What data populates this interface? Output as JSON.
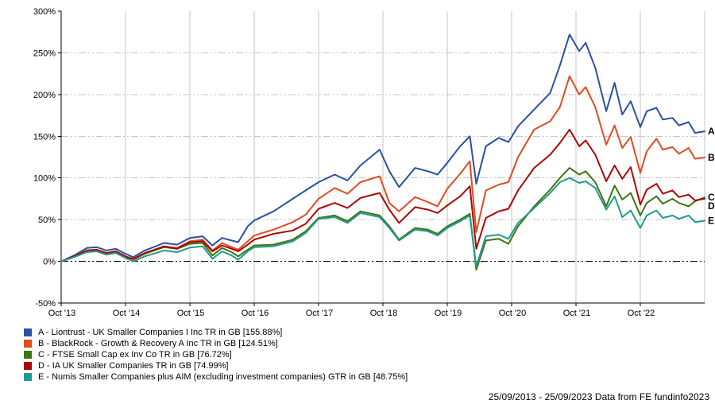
{
  "page": {
    "background": "#ffffff"
  },
  "footer": {
    "text": "25/09/2013 - 25/09/2023 Data from FE fundinfo2023"
  },
  "chart_data": {
    "type": "line",
    "title": "",
    "xlabel": "",
    "ylabel": "",
    "x_description": "years since Oct 2013 (period 25/09/2013 - 25/09/2023)",
    "xlim": [
      0,
      10
    ],
    "ylim": [
      -50,
      300
    ],
    "grid": true,
    "legend_position": "bottom-left",
    "gridline_color": "#c6c6c6",
    "zero_line_color": "#000000",
    "axis_color": "#000000",
    "x_ticks": [
      {
        "pos": 0,
        "label": "Oct '13"
      },
      {
        "pos": 1,
        "label": "Oct '14"
      },
      {
        "pos": 2,
        "label": "Oct '15"
      },
      {
        "pos": 3,
        "label": "Oct '16"
      },
      {
        "pos": 4,
        "label": "Oct '17"
      },
      {
        "pos": 5,
        "label": "Oct '18"
      },
      {
        "pos": 6,
        "label": "Oct '19"
      },
      {
        "pos": 7,
        "label": "Oct '20"
      },
      {
        "pos": 8,
        "label": "Oct '21"
      },
      {
        "pos": 9,
        "label": "Oct '22"
      }
    ],
    "x_gridlines": [
      1,
      2,
      3,
      4,
      5,
      6,
      7,
      8,
      9,
      10
    ],
    "y_ticks": [
      {
        "value": -50,
        "label": "-50%",
        "grid": false
      },
      {
        "value": 0,
        "label": "0%",
        "grid": true
      },
      {
        "value": 50,
        "label": "50%",
        "grid": true
      },
      {
        "value": 100,
        "label": "100%",
        "grid": true
      },
      {
        "value": 150,
        "label": "150%",
        "grid": true
      },
      {
        "value": 200,
        "label": "200%",
        "grid": true
      },
      {
        "value": 250,
        "label": "250%",
        "grid": true
      },
      {
        "value": 300,
        "label": "300%",
        "grid": false
      }
    ],
    "x": [
      0,
      0.2,
      0.4,
      0.55,
      0.7,
      0.85,
      1.0,
      1.12,
      1.3,
      1.6,
      1.8,
      2.0,
      2.2,
      2.35,
      2.5,
      2.65,
      2.75,
      2.9,
      3.0,
      3.3,
      3.6,
      3.8,
      4.0,
      4.25,
      4.45,
      4.65,
      4.95,
      5.1,
      5.25,
      5.5,
      5.7,
      5.85,
      6.0,
      6.2,
      6.35,
      6.45,
      6.6,
      6.8,
      6.95,
      7.1,
      7.35,
      7.6,
      7.75,
      7.9,
      8.05,
      8.15,
      8.3,
      8.47,
      8.6,
      8.72,
      8.85,
      9.0,
      9.1,
      9.25,
      9.35,
      9.5,
      9.6,
      9.75,
      9.85,
      10.0
    ],
    "series": [
      {
        "letter": "A",
        "name": "Liontrust - UK Smaller Companies I Inc TR in GB",
        "final_pct": 155.88,
        "legend_label": "A - Liontrust - UK Smaller Companies I Inc TR in GB [155.88%]",
        "color": "#2a51a0",
        "values": [
          0,
          7,
          16,
          17,
          13,
          15,
          9,
          5,
          13,
          22,
          20,
          28,
          30,
          19,
          28,
          25,
          23,
          42,
          49,
          60,
          75,
          85,
          95,
          104,
          97,
          115,
          134,
          108,
          89,
          112,
          108,
          104,
          118,
          138,
          150,
          93,
          138,
          148,
          143,
          162,
          182,
          202,
          235,
          272,
          252,
          262,
          232,
          180,
          214,
          176,
          192,
          161,
          180,
          184,
          170,
          172,
          163,
          167,
          154,
          155.88
        ]
      },
      {
        "letter": "B",
        "name": "BlackRock - Growth & Recovery A Inc TR in GB",
        "final_pct": 124.51,
        "legend_label": "B - BlackRock - Growth & Recovery A Inc TR in GB [124.51%]",
        "color": "#e04b20",
        "values": [
          0,
          6,
          13,
          14,
          10,
          12,
          6,
          2,
          9,
          18,
          16,
          24,
          26,
          13,
          22,
          17,
          14,
          24,
          31,
          38,
          47,
          56,
          75,
          88,
          81,
          95,
          102,
          70,
          60,
          77,
          71,
          66,
          87,
          105,
          120,
          35,
          85,
          92,
          95,
          125,
          158,
          168,
          185,
          222,
          200,
          209,
          185,
          140,
          163,
          136,
          149,
          106,
          132,
          147,
          134,
          137,
          129,
          136,
          123,
          124.51
        ]
      },
      {
        "letter": "C",
        "name": "FTSE Small Cap ex Inv Co TR in GB",
        "final_pct": 76.72,
        "legend_label": "C - FTSE Small Cap ex Inv Co TR in GB [76.72%]",
        "color": "#3e7512",
        "values": [
          0,
          5,
          13,
          13,
          9,
          11,
          5,
          3,
          9,
          17,
          15,
          21,
          22,
          7,
          16,
          11,
          6,
          14,
          19,
          20,
          26,
          36,
          52,
          55,
          48,
          60,
          55,
          42,
          26,
          40,
          38,
          33,
          42,
          50,
          57,
          -10,
          25,
          27,
          21,
          42,
          66,
          86,
          100,
          112,
          104,
          108,
          95,
          66,
          91,
          74,
          82,
          55,
          70,
          78,
          69,
          75,
          70,
          66,
          72,
          76.72
        ]
      },
      {
        "letter": "D",
        "name": "IA UK Smaller Companies TR in GB",
        "final_pct": 74.99,
        "legend_label": "D - IA UK Smaller Companies TR in GB [74.99%]",
        "color": "#ab0707",
        "values": [
          0,
          6,
          13,
          14,
          10,
          12,
          6,
          3,
          10,
          18,
          15,
          23,
          24,
          12,
          19,
          15,
          12,
          20,
          26,
          33,
          37,
          45,
          63,
          70,
          64,
          76,
          82,
          62,
          46,
          65,
          62,
          58,
          67,
          78,
          90,
          15,
          52,
          60,
          63,
          85,
          112,
          128,
          142,
          158,
          138,
          145,
          128,
          96,
          115,
          99,
          113,
          68,
          86,
          93,
          81,
          85,
          77,
          80,
          73,
          74.99
        ]
      },
      {
        "letter": "E",
        "name": "Numis Smaller Companies plus AIM (excluding investment companies) GTR in GB",
        "final_pct": 48.75,
        "legend_label": "E - Numis Smaller Companies plus AIM (excluding investment companies) GTR in GB [48.75%]",
        "color": "#229a8d",
        "values": [
          0,
          5,
          11,
          12,
          8,
          10,
          4,
          0,
          6,
          13,
          11,
          16.5,
          18,
          3,
          12,
          7,
          2,
          12,
          17,
          18,
          24,
          34,
          51,
          53,
          46,
          58,
          53,
          40,
          25,
          38,
          36,
          31,
          40,
          48,
          55,
          -6,
          30,
          32,
          27,
          46,
          64,
          82,
          95,
          100,
          94,
          96,
          88,
          62,
          78,
          53,
          61,
          40,
          55,
          61,
          52,
          55,
          51,
          55,
          47,
          48.75
        ]
      }
    ]
  }
}
